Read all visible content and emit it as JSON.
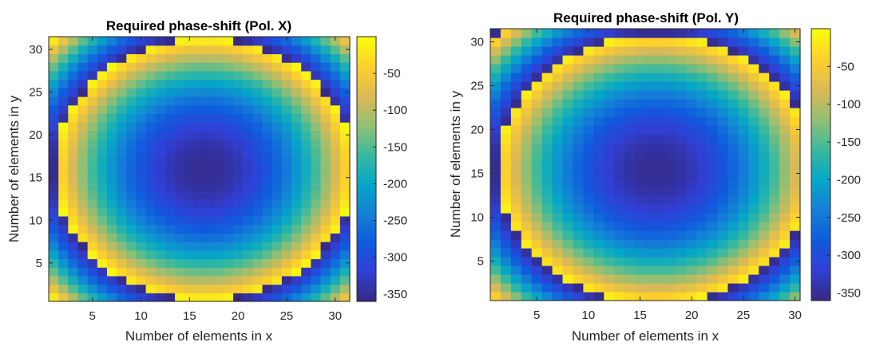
{
  "chart_data": [
    {
      "type": "heatmap",
      "title": "Required phase-shift (Pol. X)",
      "xlabel": "Number of elements in x",
      "ylabel": "Number of elements in y",
      "x_range": [
        1,
        31
      ],
      "y_range": [
        1,
        31
      ],
      "x_ticks": [
        "5",
        "10",
        "15",
        "20",
        "25",
        "30"
      ],
      "y_ticks": [
        "5",
        "10",
        "15",
        "20",
        "25",
        "30"
      ],
      "grid": {
        "cols": 31,
        "rows": 31
      },
      "center": [
        16.5,
        16
      ],
      "colorbar": {
        "min": -360,
        "max": 0,
        "ticks": [
          "-50",
          "-100",
          "-150",
          "-200",
          "-250",
          "-300",
          "-350"
        ],
        "colormap": "parula"
      },
      "phase_model": {
        "center_value": -355,
        "wrap_radius": 15.5,
        "radial_exponent": 2
      }
    },
    {
      "type": "heatmap",
      "title": "Required phase-shift (Pol. Y)",
      "xlabel": "Number of elements in x",
      "ylabel": "Number of elements in y",
      "x_range": [
        1,
        30
      ],
      "y_range": [
        1,
        31
      ],
      "x_ticks": [
        "5",
        "10",
        "15",
        "20",
        "25",
        "30"
      ],
      "y_ticks": [
        "5",
        "10",
        "15",
        "20",
        "25",
        "30"
      ],
      "grid": {
        "cols": 30,
        "rows": 31
      },
      "center": [
        16.5,
        15.5
      ],
      "colorbar": {
        "min": -360,
        "max": 0,
        "ticks": [
          "-50",
          "-100",
          "-150",
          "-200",
          "-250",
          "-300",
          "-350"
        ],
        "colormap": "parula"
      },
      "phase_model": {
        "center_value": -355,
        "wrap_radius": 15.5,
        "radial_exponent": 2
      }
    }
  ],
  "colors": {
    "parula": [
      "#352a87",
      "#3040d6",
      "#0f5cdd",
      "#1481d6",
      "#06a7c6",
      "#38b99e",
      "#92bf73",
      "#d9ba56",
      "#fcce2e",
      "#f9fb0e"
    ]
  }
}
